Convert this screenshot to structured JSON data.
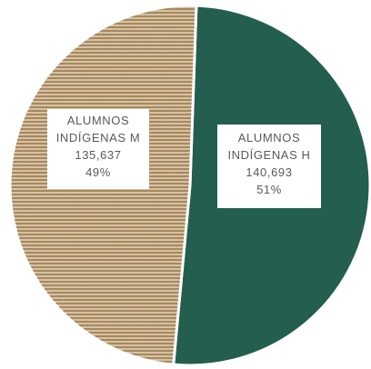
{
  "chart_data": {
    "type": "pie",
    "title": "",
    "slices": [
      {
        "category_line1": "ALUMNOS",
        "category_line2": "INDÍGENAS H",
        "value": 140693,
        "value_label": "140,693",
        "percent_label": "51%",
        "color": "#245e4f",
        "pattern": "solid"
      },
      {
        "category_line1": "ALUMNOS",
        "category_line2": "INDÍGENAS M",
        "value": 135637,
        "value_label": "135,637",
        "percent_label": "49%",
        "color": "#a27e4a",
        "pattern": "zigzag"
      }
    ],
    "legend": "none",
    "start_angle": "12 o'clock, clockwise"
  }
}
